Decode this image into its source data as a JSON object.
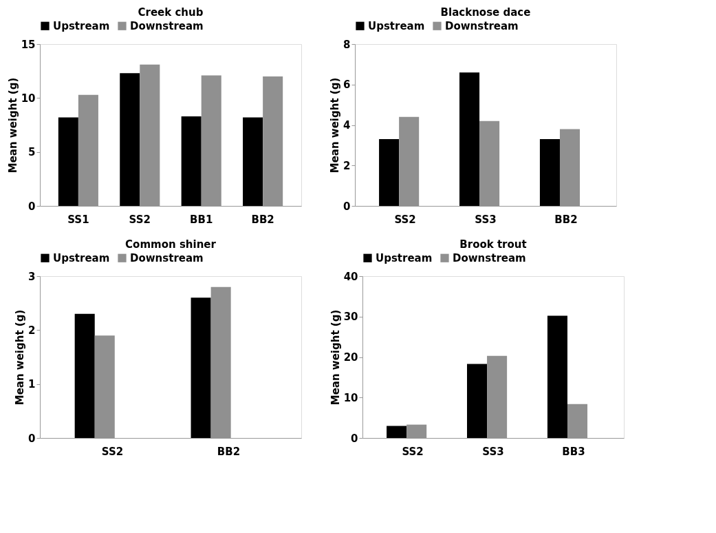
{
  "chart_data": [
    {
      "type": "bar",
      "title": "Creek chub",
      "ylabel": "Mean weight (g)",
      "categories": [
        "SS1",
        "SS2",
        "BB1",
        "BB2"
      ],
      "legend": "top",
      "ylim": [
        0,
        15
      ],
      "yticks": [
        0,
        5,
        10,
        15
      ],
      "series": [
        {
          "name": "Upstream",
          "color": "#000000",
          "values": [
            8.2,
            12.3,
            8.3,
            8.2
          ]
        },
        {
          "name": "Downstream",
          "color": "#909090",
          "values": [
            10.3,
            13.1,
            12.1,
            12.0
          ]
        }
      ]
    },
    {
      "type": "bar",
      "title": "Blacknose dace",
      "ylabel": "Mean weight (g)",
      "categories": [
        "SS2",
        "SS3",
        "BB2"
      ],
      "legend": "top",
      "ylim": [
        0,
        8
      ],
      "yticks": [
        0,
        2,
        4,
        6,
        8
      ],
      "series": [
        {
          "name": "Upstream",
          "color": "#000000",
          "values": [
            3.3,
            6.6,
            3.3
          ]
        },
        {
          "name": "Downstream",
          "color": "#909090",
          "values": [
            4.4,
            4.2,
            3.8
          ]
        }
      ]
    },
    {
      "type": "bar",
      "title": "Common shiner",
      "ylabel": "Mean weight (g)",
      "categories": [
        "SS2",
        "BB2"
      ],
      "legend": "top",
      "ylim": [
        0,
        3
      ],
      "yticks": [
        0,
        1,
        2,
        3
      ],
      "series": [
        {
          "name": "Upstream",
          "color": "#000000",
          "values": [
            2.3,
            2.6
          ]
        },
        {
          "name": "Downstream",
          "color": "#909090",
          "values": [
            1.9,
            2.8
          ]
        }
      ]
    },
    {
      "type": "bar",
      "title": "Brook trout",
      "ylabel": "Mean weight (g)",
      "categories": [
        "SS2",
        "SS3",
        "BB3"
      ],
      "legend": "top",
      "ylim": [
        0,
        40
      ],
      "yticks": [
        0,
        10,
        20,
        30,
        40
      ],
      "series": [
        {
          "name": "Upstream",
          "color": "#000000",
          "values": [
            3.0,
            18.3,
            30.2
          ]
        },
        {
          "name": "Downstream",
          "color": "#909090",
          "values": [
            3.3,
            20.3,
            8.4
          ]
        }
      ]
    }
  ]
}
